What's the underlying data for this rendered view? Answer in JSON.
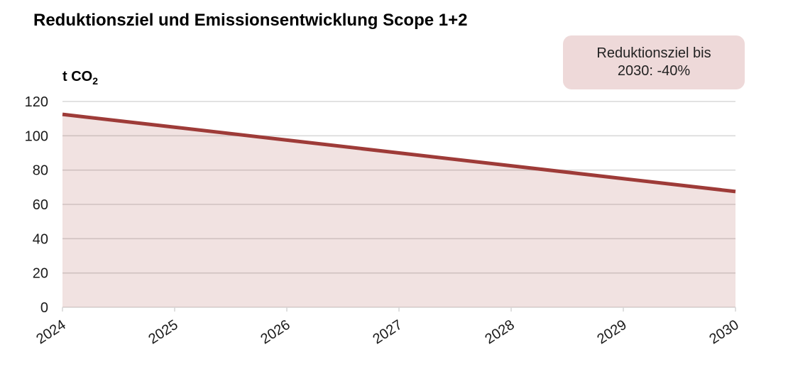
{
  "chart_data": {
    "type": "area",
    "title": "Reduktionsziel und Emissionsentwicklung Scope 1+2",
    "ylabel": {
      "text": "t CO",
      "subscript": "2",
      "full": "t CO₂"
    },
    "x": [
      "2024",
      "2025",
      "2026",
      "2027",
      "2028",
      "2029",
      "2030"
    ],
    "values": [
      112.5,
      105,
      97.5,
      90,
      82.5,
      75,
      67.5
    ],
    "ylim": [
      0,
      120
    ],
    "yticks": [
      0,
      20,
      40,
      60,
      80,
      100,
      120
    ],
    "grid": "horizontal",
    "legend": "none",
    "annotation": {
      "line1": "Reduktionsziel bis",
      "line2": "2030: -40%"
    },
    "colors": {
      "line": "#9e3b38",
      "fill": "#9e3b38",
      "fill_alpha": 0.15,
      "grid": "#d9d9d9",
      "annotation_bg": "#eed9d9",
      "text": "#1a1a1a"
    }
  }
}
